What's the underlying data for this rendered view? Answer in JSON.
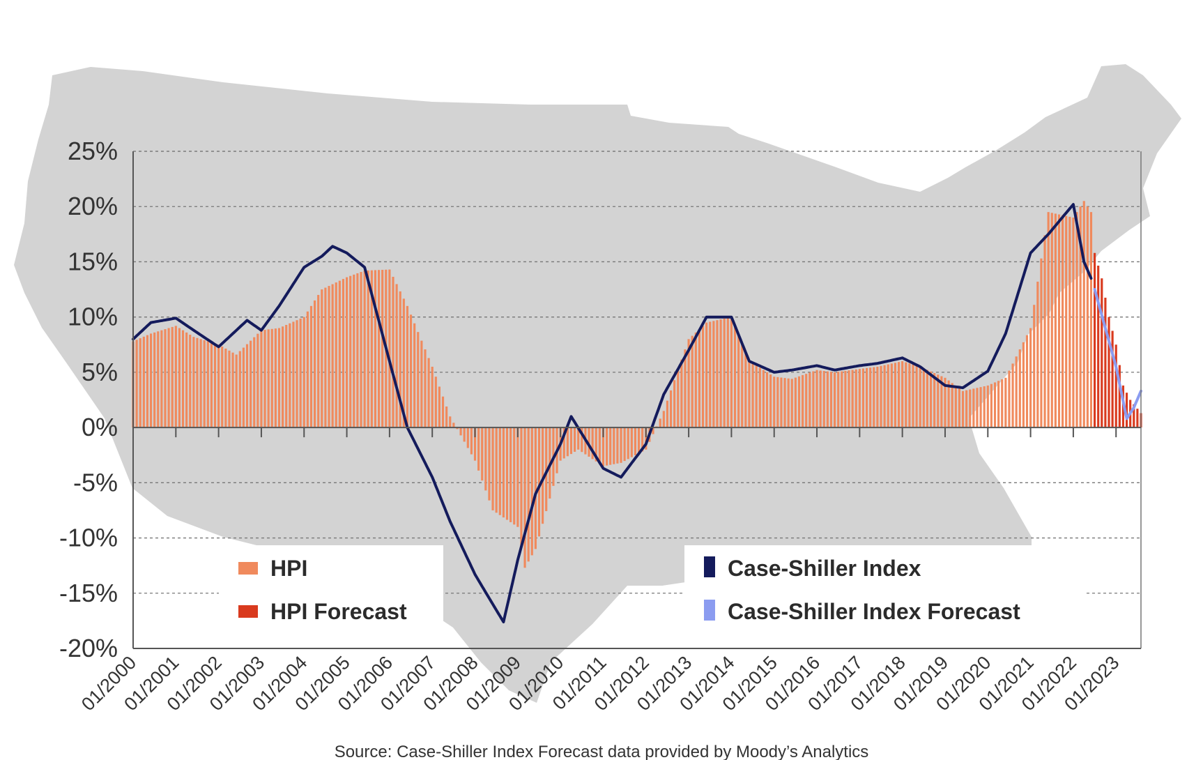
{
  "chart_data": {
    "type": "bar",
    "y_unit": "%",
    "ylim": [
      -20,
      25
    ],
    "y_ticks": [
      25,
      20,
      15,
      10,
      5,
      0,
      -5,
      -10,
      -15,
      -20
    ],
    "y_tick_labels": [
      "25%",
      "20%",
      "15%",
      "10%",
      "5%",
      "0%",
      "-5%",
      "-10%",
      "-15%",
      "-20%"
    ],
    "x_tick_labels": [
      "01/2000",
      "01/2001",
      "01/2002",
      "01/2003",
      "01/2004",
      "01/2005",
      "01/2006",
      "01/2007",
      "01/2008",
      "01/2009",
      "01/2010",
      "01/2011",
      "01/2012",
      "01/2013",
      "01/2014",
      "01/2015",
      "01/2016",
      "01/2017",
      "01/2018",
      "01/2019",
      "01/2020",
      "01/2021",
      "01/2022",
      "01/2023"
    ],
    "x_range": [
      "01/2000",
      "08/2023"
    ],
    "grid": "horizontal dashed",
    "background": "silhouette map of the contiguous United States",
    "colors": {
      "hpi": "#f08a5d",
      "hpi_forecast": "#d93a1e",
      "case_shiller": "#141b5c",
      "case_shiller_forecast": "#8b9cf0",
      "map": "#d3d3d3",
      "grid": "#777777"
    },
    "series": [
      {
        "name": "HPI",
        "type": "bar",
        "color": "#f08a5d",
        "points": [
          [
            "01/2000",
            7.8
          ],
          [
            "06/2000",
            8.5
          ],
          [
            "01/2001",
            9.2
          ],
          [
            "06/2001",
            8.2
          ],
          [
            "01/2002",
            7.5
          ],
          [
            "06/2002",
            6.6
          ],
          [
            "01/2003",
            8.8
          ],
          [
            "06/2003",
            9.0
          ],
          [
            "01/2004",
            10.0
          ],
          [
            "06/2004",
            12.5
          ],
          [
            "01/2005",
            13.6
          ],
          [
            "06/2005",
            14.2
          ],
          [
            "01/2006",
            14.3
          ],
          [
            "06/2006",
            11.0
          ],
          [
            "01/2007",
            5.5
          ],
          [
            "06/2007",
            1.0
          ],
          [
            "01/2008",
            -3.0
          ],
          [
            "06/2008",
            -7.5
          ],
          [
            "01/2009",
            -9.0
          ],
          [
            "03/2009",
            -12.7
          ],
          [
            "06/2009",
            -11.0
          ],
          [
            "01/2010",
            -3.0
          ],
          [
            "06/2010",
            -2.0
          ],
          [
            "01/2011",
            -3.5
          ],
          [
            "06/2011",
            -3.2
          ],
          [
            "01/2012",
            -2.0
          ],
          [
            "06/2012",
            1.5
          ],
          [
            "01/2013",
            8.0
          ],
          [
            "06/2013",
            9.5
          ],
          [
            "01/2014",
            10.0
          ],
          [
            "06/2014",
            6.0
          ],
          [
            "01/2015",
            4.6
          ],
          [
            "06/2015",
            4.4
          ],
          [
            "01/2016",
            5.2
          ],
          [
            "06/2016",
            5.0
          ],
          [
            "01/2017",
            5.3
          ],
          [
            "06/2017",
            5.5
          ],
          [
            "01/2018",
            6.0
          ],
          [
            "06/2018",
            5.5
          ],
          [
            "01/2019",
            4.5
          ],
          [
            "06/2019",
            3.3
          ],
          [
            "01/2020",
            3.8
          ],
          [
            "06/2020",
            4.5
          ],
          [
            "01/2021",
            9.0
          ],
          [
            "06/2021",
            19.5
          ],
          [
            "01/2022",
            19.0
          ],
          [
            "04/2022",
            20.5
          ],
          [
            "06/2022",
            19.5
          ]
        ]
      },
      {
        "name": "HPI Forecast",
        "type": "bar",
        "color": "#d93a1e",
        "points": [
          [
            "07/2022",
            15.8
          ],
          [
            "09/2022",
            13.5
          ],
          [
            "11/2022",
            10.0
          ],
          [
            "01/2023",
            7.5
          ],
          [
            "03/2023",
            3.8
          ],
          [
            "05/2023",
            2.5
          ],
          [
            "08/2023",
            1.3
          ]
        ]
      },
      {
        "name": "Case-Shiller Index",
        "type": "line",
        "color": "#141b5c",
        "points": [
          [
            "01/2000",
            8.0
          ],
          [
            "06/2000",
            9.5
          ],
          [
            "01/2001",
            9.9
          ],
          [
            "06/2001",
            8.8
          ],
          [
            "01/2002",
            7.3
          ],
          [
            "06/2002",
            8.8
          ],
          [
            "09/2002",
            9.7
          ],
          [
            "01/2003",
            8.8
          ],
          [
            "06/2003",
            11.0
          ],
          [
            "01/2004",
            14.5
          ],
          [
            "06/2004",
            15.5
          ],
          [
            "09/2004",
            16.4
          ],
          [
            "01/2005",
            15.8
          ],
          [
            "06/2005",
            14.5
          ],
          [
            "01/2006",
            6.0
          ],
          [
            "06/2006",
            0.0
          ],
          [
            "01/2007",
            -4.5
          ],
          [
            "06/2007",
            -8.5
          ],
          [
            "01/2008",
            -13.3
          ],
          [
            "06/2008",
            -16.0
          ],
          [
            "09/2008",
            -17.6
          ],
          [
            "01/2009",
            -12.0
          ],
          [
            "06/2009",
            -6.0
          ],
          [
            "01/2010",
            -1.5
          ],
          [
            "04/2010",
            1.0
          ],
          [
            "01/2011",
            -3.7
          ],
          [
            "06/2011",
            -4.5
          ],
          [
            "01/2012",
            -1.5
          ],
          [
            "06/2012",
            3.0
          ],
          [
            "01/2013",
            7.0
          ],
          [
            "06/2013",
            10.0
          ],
          [
            "01/2014",
            10.0
          ],
          [
            "06/2014",
            6.0
          ],
          [
            "01/2015",
            5.0
          ],
          [
            "06/2015",
            5.2
          ],
          [
            "01/2016",
            5.6
          ],
          [
            "06/2016",
            5.2
          ],
          [
            "01/2017",
            5.6
          ],
          [
            "06/2017",
            5.8
          ],
          [
            "01/2018",
            6.3
          ],
          [
            "06/2018",
            5.5
          ],
          [
            "01/2019",
            3.8
          ],
          [
            "06/2019",
            3.6
          ],
          [
            "01/2020",
            5.1
          ],
          [
            "06/2020",
            8.5
          ],
          [
            "01/2021",
            15.8
          ],
          [
            "06/2021",
            17.5
          ],
          [
            "01/2022",
            20.2
          ],
          [
            "04/2022",
            15.0
          ],
          [
            "06/2022",
            13.5
          ]
        ]
      },
      {
        "name": "Case-Shiller Index Forecast",
        "type": "line",
        "color": "#8b9cf0",
        "points": [
          [
            "07/2022",
            12.5
          ],
          [
            "10/2022",
            9.0
          ],
          [
            "01/2023",
            5.5
          ],
          [
            "04/2023",
            0.8
          ],
          [
            "06/2023",
            1.8
          ],
          [
            "08/2023",
            3.3
          ]
        ]
      }
    ]
  },
  "source_text": "Source: Case-Shiller Index Forecast data provided by Moody’s Analytics"
}
